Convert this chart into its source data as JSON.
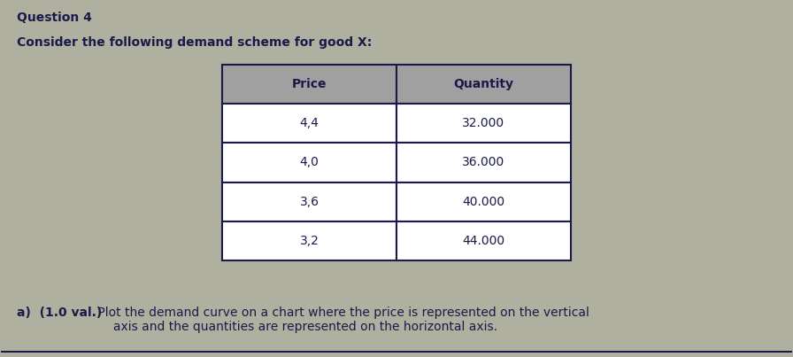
{
  "title_line1": "Question 4",
  "title_line2": "Consider the following demand scheme for good X:",
  "table_headers": [
    "Price",
    "Quantity"
  ],
  "table_data": [
    [
      "4,4",
      "32.000"
    ],
    [
      "4,0",
      "36.000"
    ],
    [
      "3,6",
      "40.000"
    ],
    [
      "3,2",
      "44.000"
    ]
  ],
  "footnote_bold": "a)  (1.0 val.)",
  "footnote_main": " Plot the demand curve on a chart where the price is represented on the vertical\n     axis and the quantities are represented on the horizontal axis.",
  "background_color": "#b0b0a0",
  "table_header_color": "#a0a0a0",
  "text_color": "#1a1a4a",
  "border_color": "#1a1a4a",
  "font_size_title": 10,
  "font_size_table": 10,
  "font_size_footnote": 10
}
